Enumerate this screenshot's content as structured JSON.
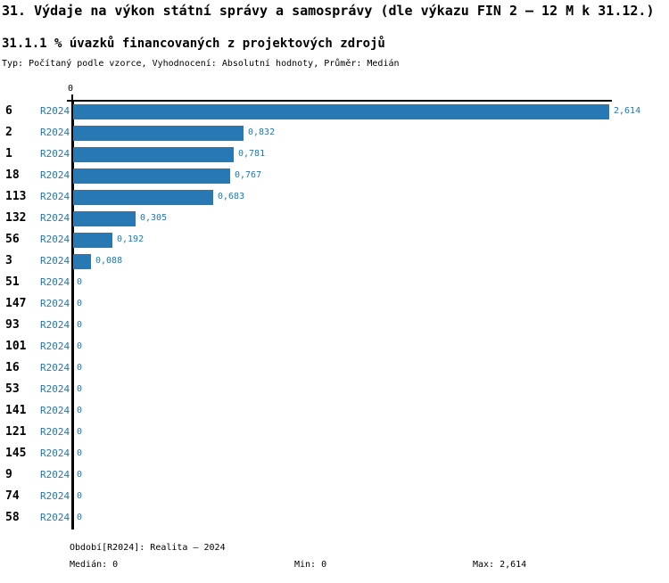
{
  "header": {
    "title": "31. Výdaje na výkon státní správy a samosprávy (dle výkazu FIN 2 – 12 M k 31.12.)",
    "subtitle": "31.1.1 % úvazků financovaných z projektových zdrojů",
    "meta": "Typ: Počítaný podle vzorce, Vyhodnocení: Absolutní hodnoty, Průměr: Medián"
  },
  "chart_data": {
    "type": "bar",
    "orientation": "horizontal",
    "title": "31.1.1 % úvazků financovaných z projektových zdrojů",
    "categories": [
      "6",
      "2",
      "1",
      "18",
      "113",
      "132",
      "56",
      "3",
      "51",
      "147",
      "93",
      "101",
      "16",
      "53",
      "141",
      "121",
      "145",
      "9",
      "74",
      "58"
    ],
    "series": [
      {
        "name": "R2024",
        "values": [
          2.614,
          0.832,
          0.781,
          0.767,
          0.683,
          0.305,
          0.192,
          0.088,
          0,
          0,
          0,
          0,
          0,
          0,
          0,
          0,
          0,
          0,
          0,
          0
        ]
      }
    ],
    "value_labels": [
      "2,614",
      "0,832",
      "0,781",
      "0,767",
      "0,683",
      "0,305",
      "0,192",
      "0,088",
      "0",
      "0",
      "0",
      "0",
      "0",
      "0",
      "0",
      "0",
      "0",
      "0",
      "0",
      "0"
    ],
    "x_axis": {
      "position": "top",
      "range": [
        0,
        2.614
      ],
      "tick_labels": [
        "0"
      ]
    },
    "grid": false,
    "legend": false,
    "bar_color": "#2878b4",
    "label_color": "#2277b2"
  },
  "footer": {
    "period": "Období[R2024]: Realita – 2024",
    "median": "Medián: 0",
    "min": "Min: 0",
    "max": "Max: 2,614"
  }
}
